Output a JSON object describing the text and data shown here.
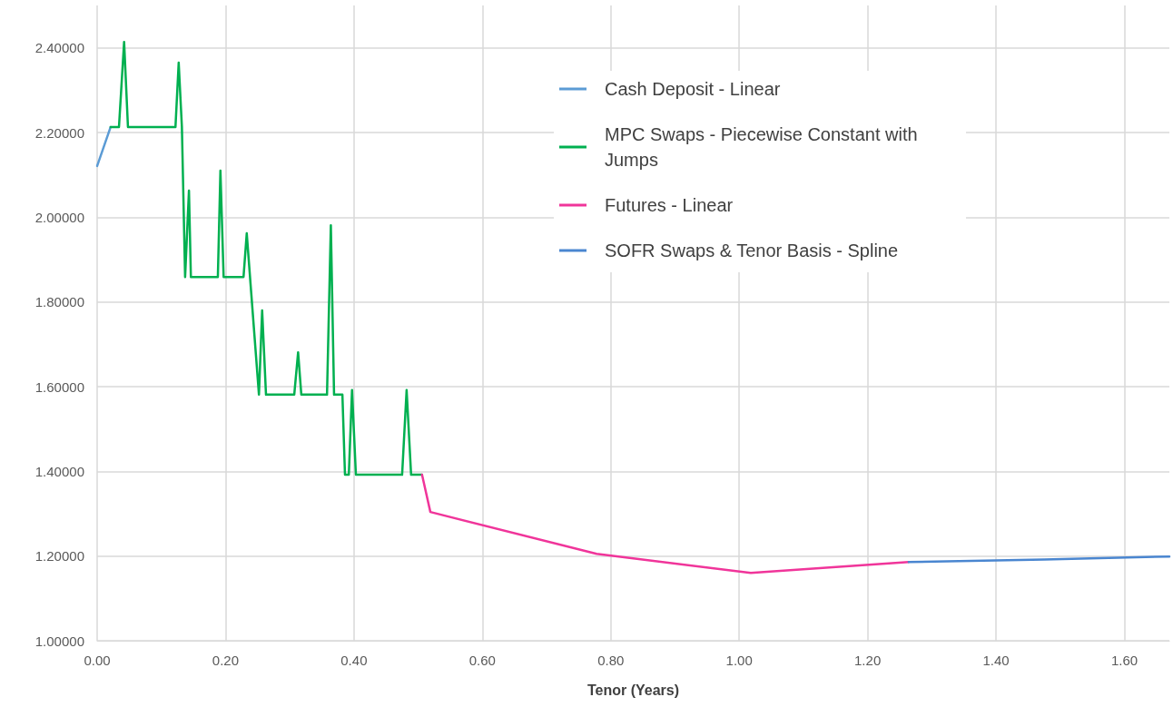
{
  "chart_data": {
    "type": "line",
    "xlabel": "Tenor (Years)",
    "xlim": [
      0,
      1.67
    ],
    "xticks": [
      {
        "value": 0,
        "label": "0.00"
      },
      {
        "value": 0.2,
        "label": "0.20"
      },
      {
        "value": 0.4,
        "label": "0.40"
      },
      {
        "value": 0.6,
        "label": "0.60"
      },
      {
        "value": 0.8,
        "label": "0.80"
      },
      {
        "value": 1,
        "label": "1.00"
      },
      {
        "value": 1.2,
        "label": "1.20"
      },
      {
        "value": 1.4,
        "label": "1.40"
      },
      {
        "value": 1.6,
        "label": "1.60"
      }
    ],
    "ylim": [
      1,
      2.5
    ],
    "yticks": [
      {
        "value": 1,
        "label": "1.00000"
      },
      {
        "value": 1.2,
        "label": "1.20000"
      },
      {
        "value": 1.4,
        "label": "1.40000"
      },
      {
        "value": 1.6,
        "label": "1.60000"
      },
      {
        "value": 1.8,
        "label": "1.80000"
      },
      {
        "value": 2,
        "label": "2.00000"
      },
      {
        "value": 2.2,
        "label": "2.20000"
      },
      {
        "value": 2.4,
        "label": "2.40000"
      }
    ],
    "grid": true,
    "legend": "top right",
    "marker": "none",
    "line_style": "solid",
    "series": [
      {
        "name": "Cash Deposit - Linear",
        "color": "#5b9bd5",
        "x": [
          0,
          0.021
        ],
        "values": [
          2.121,
          2.213
        ]
      },
      {
        "name": "MPC Swaps - Piecewise Constant with Jumps",
        "color": "#00b050",
        "x": [
          0.021,
          0.034,
          0.042,
          0.048,
          0.122,
          0.127,
          0.132,
          0.137,
          0.143,
          0.146,
          0.188,
          0.192,
          0.197,
          0.228,
          0.233,
          0.24,
          0.252,
          0.257,
          0.263,
          0.307,
          0.313,
          0.318,
          0.358,
          0.364,
          0.369,
          0.382,
          0.386,
          0.392,
          0.397,
          0.403,
          0.475,
          0.482,
          0.489,
          0.506
        ],
        "values": [
          2.213,
          2.213,
          2.414,
          2.213,
          2.213,
          2.365,
          2.213,
          1.859,
          2.063,
          1.859,
          1.859,
          2.11,
          1.859,
          1.859,
          1.962,
          1.821,
          1.581,
          1.78,
          1.581,
          1.581,
          1.681,
          1.581,
          1.581,
          1.981,
          1.581,
          1.581,
          1.392,
          1.392,
          1.592,
          1.392,
          1.392,
          1.592,
          1.392,
          1.392
        ]
      },
      {
        "name": "Futures - Linear",
        "color": "#f0359a",
        "x": [
          0.506,
          0.519,
          0.778,
          1.018,
          1.161,
          1.264
        ],
        "values": [
          1.392,
          1.304,
          1.205,
          1.16,
          1.175,
          1.186
        ]
      },
      {
        "name": "SOFR Swaps & Tenor Basis - Spline",
        "color": "#4a86d0",
        "x": [
          1.264,
          1.475,
          1.67
        ],
        "values": [
          1.186,
          1.192,
          1.199
        ]
      }
    ]
  }
}
